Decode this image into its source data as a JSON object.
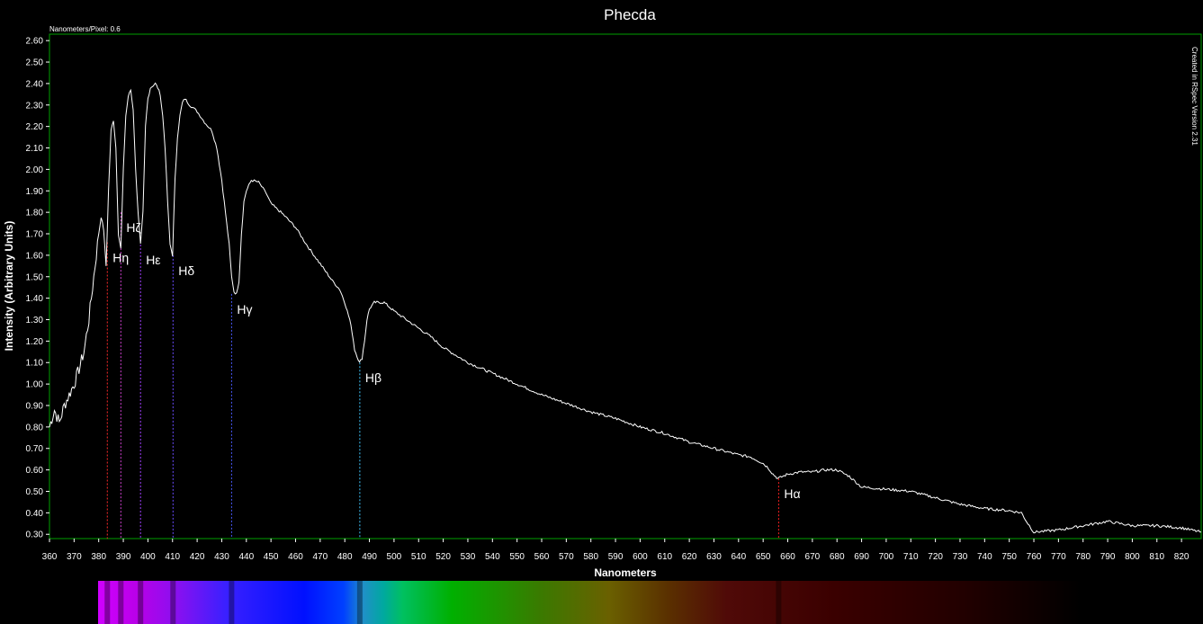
{
  "chart_data": {
    "type": "line",
    "title": "Phecda",
    "xlabel": "Nanometers",
    "ylabel": "Intensity (Arbitrary Units)",
    "resolution_note": "Nanometers/Pixel: 0.6",
    "software_note": "Created in RSpec Version 2.31",
    "xlim": [
      360,
      828
    ],
    "ylim": [
      0.28,
      2.63
    ],
    "xticks": [
      360,
      370,
      380,
      390,
      400,
      410,
      420,
      430,
      440,
      450,
      460,
      470,
      480,
      490,
      500,
      510,
      520,
      530,
      540,
      550,
      560,
      570,
      580,
      590,
      600,
      610,
      620,
      630,
      640,
      650,
      660,
      670,
      680,
      690,
      700,
      710,
      720,
      730,
      740,
      750,
      760,
      770,
      780,
      790,
      800,
      810,
      820
    ],
    "yticks": [
      0.3,
      0.4,
      0.5,
      0.6,
      0.7,
      0.8,
      0.9,
      1.0,
      1.1,
      1.2,
      1.3,
      1.4,
      1.5,
      1.6,
      1.7,
      1.8,
      1.9,
      2.0,
      2.1,
      2.2,
      2.3,
      2.4,
      2.5,
      2.6
    ],
    "grid": false,
    "colors": {
      "background": "#000000",
      "line": "#ffffff",
      "frame": "#00a000"
    },
    "series": [
      {
        "x": [
          360,
          362,
          364,
          366,
          368,
          370,
          372,
          374,
          376,
          378,
          380,
          381,
          382,
          383,
          384,
          385,
          386,
          387,
          388,
          389,
          390,
          391,
          392,
          393,
          394,
          395,
          396,
          397,
          398,
          399,
          400,
          401,
          402,
          403,
          404,
          405,
          406,
          407,
          408,
          409,
          410,
          411,
          412,
          413,
          414,
          415,
          417,
          420,
          423,
          426,
          428,
          430,
          431,
          432,
          433,
          434,
          435,
          436,
          437,
          438,
          439,
          440,
          442,
          445,
          448,
          450,
          455,
          460,
          465,
          470,
          475,
          478,
          480,
          482,
          483,
          484,
          485,
          486,
          487,
          488,
          489,
          490,
          492,
          494,
          496,
          498,
          500,
          505,
          510,
          515,
          520,
          530,
          540,
          550,
          560,
          570,
          580,
          590,
          600,
          610,
          620,
          630,
          640,
          645,
          650,
          652,
          654,
          656,
          658,
          660,
          665,
          670,
          675,
          680,
          685,
          690,
          700,
          710,
          720,
          730,
          740,
          750,
          755,
          757,
          760,
          770,
          780,
          790,
          800,
          810,
          820,
          828
        ],
        "values": [
          0.8,
          0.88,
          0.82,
          0.9,
          0.95,
          1.0,
          1.07,
          1.15,
          1.3,
          1.5,
          1.7,
          1.78,
          1.72,
          1.55,
          1.9,
          2.18,
          2.23,
          2.1,
          1.7,
          1.63,
          2.0,
          2.25,
          2.34,
          2.37,
          2.28,
          2.0,
          1.8,
          1.65,
          1.8,
          2.2,
          2.33,
          2.38,
          2.39,
          2.4,
          2.38,
          2.35,
          2.25,
          2.1,
          1.85,
          1.65,
          1.6,
          1.95,
          2.15,
          2.25,
          2.31,
          2.33,
          2.3,
          2.27,
          2.22,
          2.18,
          2.1,
          1.95,
          1.85,
          1.75,
          1.65,
          1.5,
          1.43,
          1.42,
          1.48,
          1.7,
          1.85,
          1.9,
          1.95,
          1.94,
          1.89,
          1.84,
          1.79,
          1.73,
          1.64,
          1.56,
          1.48,
          1.44,
          1.38,
          1.3,
          1.24,
          1.16,
          1.13,
          1.1,
          1.12,
          1.2,
          1.3,
          1.35,
          1.38,
          1.38,
          1.38,
          1.36,
          1.34,
          1.3,
          1.26,
          1.22,
          1.17,
          1.1,
          1.05,
          1.0,
          0.95,
          0.91,
          0.87,
          0.84,
          0.8,
          0.77,
          0.73,
          0.7,
          0.67,
          0.66,
          0.63,
          0.61,
          0.58,
          0.56,
          0.57,
          0.58,
          0.59,
          0.59,
          0.6,
          0.6,
          0.57,
          0.52,
          0.51,
          0.5,
          0.47,
          0.44,
          0.42,
          0.41,
          0.4,
          0.36,
          0.31,
          0.32,
          0.34,
          0.36,
          0.34,
          0.34,
          0.33,
          0.31
        ]
      }
    ],
    "markers": [
      {
        "label": "Hη",
        "x": 383.5,
        "y": 1.66,
        "color": "#ff2a2a"
      },
      {
        "label": "Hζ",
        "x": 389.0,
        "y": 1.8,
        "color": "#d040d0"
      },
      {
        "label": "Hε",
        "x": 397.0,
        "y": 1.65,
        "color": "#a040ff"
      },
      {
        "label": "Hδ",
        "x": 410.2,
        "y": 1.6,
        "color": "#6a4cff"
      },
      {
        "label": "Hγ",
        "x": 434.0,
        "y": 1.42,
        "color": "#4a5cff"
      },
      {
        "label": "Hβ",
        "x": 486.1,
        "y": 1.1,
        "color": "#40c8ff"
      },
      {
        "label": "Hα",
        "x": 656.3,
        "y": 0.56,
        "color": "#ff2020"
      }
    ]
  }
}
